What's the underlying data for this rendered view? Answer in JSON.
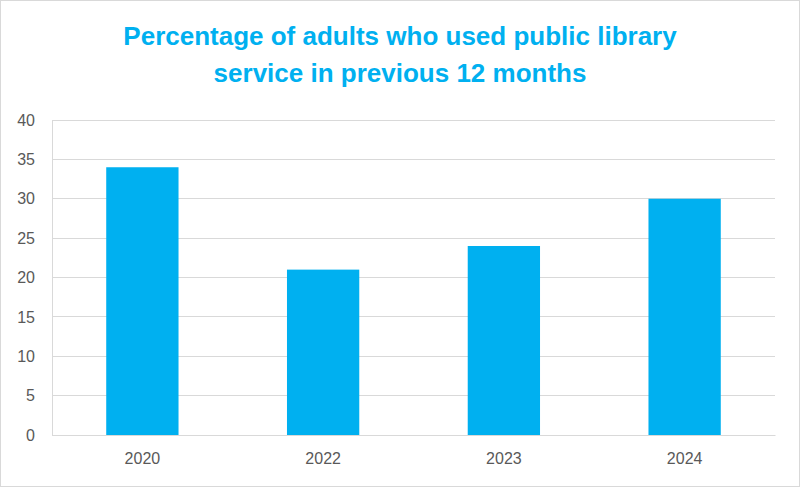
{
  "chart_data": {
    "type": "bar",
    "title": "Percentage of adults who used public library service in previous 12 months",
    "categories": [
      "2020",
      "2022",
      "2023",
      "2024"
    ],
    "values": [
      34,
      21,
      24,
      30
    ],
    "color": "#00b0f0",
    "ylim": [
      0,
      40
    ],
    "yticks": [
      0,
      5,
      10,
      15,
      20,
      25,
      30,
      35,
      40
    ],
    "grid": true
  }
}
